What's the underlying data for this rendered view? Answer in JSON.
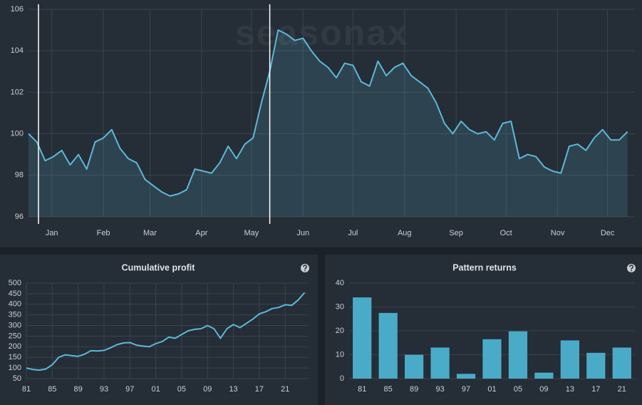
{
  "chart_data": [
    {
      "type": "line",
      "watermark": "seasonax",
      "color": "#5cb9d6",
      "area": true,
      "grid": true,
      "x": [
        1,
        6,
        11,
        16,
        21,
        26,
        31,
        36,
        41,
        46,
        51,
        56,
        61,
        66,
        71,
        76,
        81,
        86,
        91,
        96,
        101,
        106,
        111,
        116,
        121,
        126,
        131,
        136,
        141,
        146,
        151,
        156,
        161,
        166,
        171,
        176,
        181,
        186,
        191,
        196,
        201,
        206,
        211,
        216,
        221,
        226,
        231,
        236,
        241,
        246,
        251,
        256,
        261,
        266,
        271,
        276,
        281,
        286,
        291,
        296,
        301,
        306,
        311,
        316,
        321,
        326,
        331,
        336,
        341,
        346,
        351,
        356,
        361
      ],
      "values": [
        100,
        99.6,
        98.7,
        98.9,
        99.2,
        98.5,
        99.0,
        98.3,
        99.6,
        99.8,
        100.2,
        99.3,
        98.8,
        98.6,
        97.8,
        97.5,
        97.2,
        97.0,
        97.1,
        97.3,
        98.3,
        98.2,
        98.1,
        98.6,
        99.4,
        98.8,
        99.5,
        99.8,
        101.5,
        103.0,
        105.0,
        104.8,
        104.5,
        104.6,
        104.0,
        103.5,
        103.2,
        102.7,
        103.4,
        103.3,
        102.5,
        102.3,
        103.5,
        102.8,
        103.2,
        103.4,
        102.8,
        102.5,
        102.2,
        101.5,
        100.5,
        100.0,
        100.6,
        100.2,
        100.0,
        100.1,
        99.7,
        100.5,
        100.6,
        98.8,
        99.0,
        98.9,
        98.4,
        98.2,
        98.1,
        99.4,
        99.5,
        99.2,
        99.8,
        100.2,
        99.7,
        99.7,
        100.1
      ],
      "markers": [
        7,
        146
      ],
      "xlim": [
        1,
        365
      ],
      "xticks": [
        {
          "value": 15,
          "label": "Jan"
        },
        {
          "value": 46,
          "label": "Feb"
        },
        {
          "value": 74,
          "label": "Mar"
        },
        {
          "value": 105,
          "label": "Apr"
        },
        {
          "value": 135,
          "label": "May"
        },
        {
          "value": 166,
          "label": "Jun"
        },
        {
          "value": 196,
          "label": "Jul"
        },
        {
          "value": 227,
          "label": "Aug"
        },
        {
          "value": 258,
          "label": "Sep"
        },
        {
          "value": 288,
          "label": "Oct"
        },
        {
          "value": 319,
          "label": "Nov"
        },
        {
          "value": 349,
          "label": "Dec"
        }
      ],
      "ylim": [
        96,
        106
      ],
      "yticks": [
        96,
        98,
        100,
        102,
        104,
        106
      ]
    },
    {
      "type": "line",
      "title": "Cumulative profit",
      "color": "#5cb9d6",
      "area": false,
      "grid": true,
      "x": [
        1981,
        1982,
        1983,
        1984,
        1985,
        1986,
        1987,
        1988,
        1989,
        1990,
        1991,
        1992,
        1993,
        1994,
        1995,
        1996,
        1997,
        1998,
        1999,
        2000,
        2001,
        2002,
        2003,
        2004,
        2005,
        2006,
        2007,
        2008,
        2009,
        2010,
        2011,
        2012,
        2013,
        2014,
        2015,
        2016,
        2017,
        2018,
        2019,
        2020,
        2021,
        2022,
        2023,
        2024
      ],
      "values": [
        100,
        93,
        90,
        95,
        115,
        150,
        162,
        158,
        155,
        165,
        182,
        180,
        183,
        195,
        210,
        218,
        220,
        208,
        203,
        200,
        215,
        225,
        245,
        240,
        258,
        275,
        282,
        285,
        300,
        285,
        240,
        285,
        305,
        290,
        310,
        330,
        355,
        365,
        380,
        385,
        398,
        395,
        420,
        455
      ],
      "xlim": [
        1981,
        2024.5
      ],
      "xticks": [
        {
          "value": 1981,
          "label": "81"
        },
        {
          "value": 1985,
          "label": "85"
        },
        {
          "value": 1989,
          "label": "89"
        },
        {
          "value": 1993,
          "label": "93"
        },
        {
          "value": 1997,
          "label": "97"
        },
        {
          "value": 2001,
          "label": "01"
        },
        {
          "value": 2005,
          "label": "05"
        },
        {
          "value": 2009,
          "label": "09"
        },
        {
          "value": 2013,
          "label": "13"
        },
        {
          "value": 2017,
          "label": "17"
        },
        {
          "value": 2021,
          "label": "21"
        }
      ],
      "ylim": [
        50,
        500
      ],
      "yticks": [
        50,
        100,
        150,
        200,
        250,
        300,
        350,
        400,
        450,
        500
      ]
    },
    {
      "type": "bar",
      "title": "Pattern returns",
      "color": "#4aabc8",
      "grid": true,
      "categories": [
        "81",
        "85",
        "89",
        "93",
        "97",
        "01",
        "05",
        "09",
        "13",
        "17",
        "21"
      ],
      "values": [
        34,
        27.5,
        10,
        13,
        2,
        16.5,
        19.8,
        2.5,
        16,
        10.8,
        13
      ],
      "ylim": [
        0,
        40
      ],
      "yticks": [
        0,
        10,
        20,
        30,
        40
      ]
    }
  ]
}
